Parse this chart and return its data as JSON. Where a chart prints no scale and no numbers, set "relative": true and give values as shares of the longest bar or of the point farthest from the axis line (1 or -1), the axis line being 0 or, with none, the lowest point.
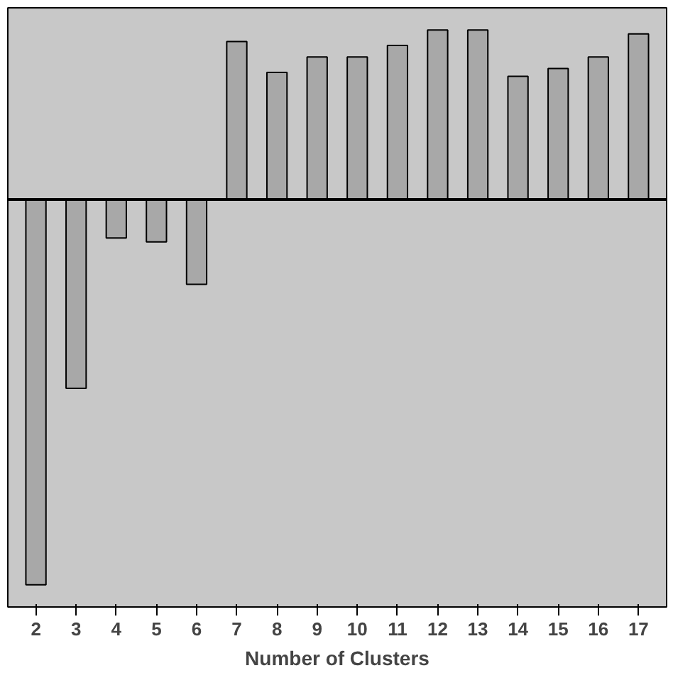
{
  "chart_data": {
    "type": "bar",
    "relative": true,
    "xlabel": "Number of Clusters",
    "categories": [
      "2",
      "3",
      "4",
      "5",
      "6",
      "7",
      "8",
      "9",
      "10",
      "11",
      "12",
      "13",
      "14",
      "15",
      "16",
      "17"
    ],
    "values": [
      -1,
      -0.49,
      -0.1,
      -0.11,
      -0.22,
      0.41,
      0.33,
      0.37,
      0.37,
      0.4,
      0.44,
      0.44,
      0.32,
      0.34,
      0.37,
      0.43
    ],
    "color": "#a8a8a8"
  }
}
